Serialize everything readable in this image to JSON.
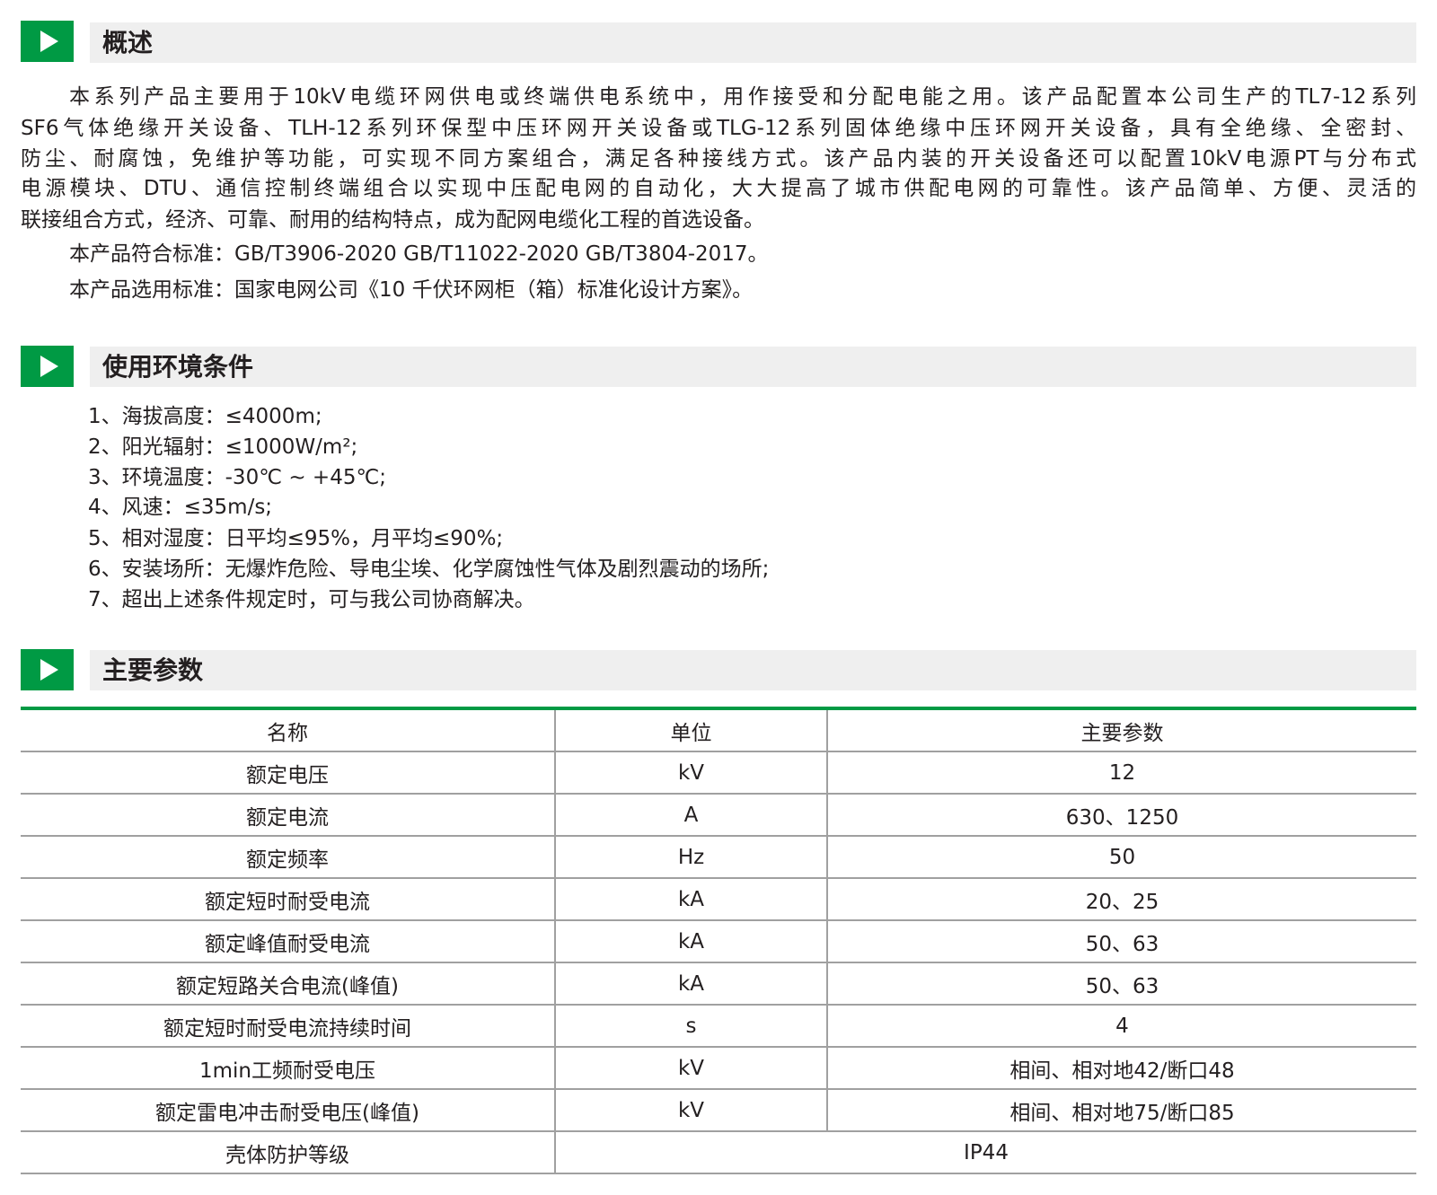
{
  "colors": {
    "accent": "#009a44",
    "header_bg": "#efefef",
    "text": "#231f20"
  },
  "sections": [
    {
      "icon": "play-triangle-icon",
      "title": "概述"
    },
    {
      "icon": "play-triangle-icon",
      "title": "使用环境条件"
    },
    {
      "icon": "play-triangle-icon",
      "title": "主要参数"
    }
  ],
  "overview": {
    "lines": [
      "本系列产品主要用于10kV电缆环网供电或终端供电系统中，用作接受和分配电能之用。该产品配置本公司生产的TL7-12系列",
      "SF6气体绝缘开关设备、TLH-12系列环保型中压环网开关设备或TLG-12系列固体绝缘中压环网开关设备，具有全绝缘、全密封、",
      "防尘、耐腐蚀，免维护等功能，可实现不同方案组合，满足各种接线方式。该产品内装的开关设备还可以配置10kV电源PT与分布式",
      "电源模块、DTU、通信控制终端组合以实现中压配电网的自动化，大大提高了城市供配电网的可靠性。该产品简单、方便、灵活的",
      "联接组合方式，经济、可靠、耐用的结构特点，成为配网电缆化工程的首选设备。"
    ],
    "standards": [
      "本产品符合标准：GB/T3906-2020  GB/T11022-2020  GB/T3804-2017。",
      "本产品选用标准：国家电网公司《10 千伏环网柜（箱）标准化设计方案》。"
    ]
  },
  "conditions": [
    "1、海拔高度：≤4000m;",
    "2、阳光辐射：≤1000W/m²;",
    "3、环境温度：-30℃ ~ +45℃;",
    "4、风速：≤35m/s;",
    "5、相对湿度：日平均≤95%，月平均≤90%;",
    "6、安装场所：无爆炸危险、导电尘埃、化学腐蚀性气体及剧烈震动的场所;",
    "7、超出上述条件规定时，可与我公司协商解决。"
  ],
  "params": {
    "headers": [
      "名称",
      "单位",
      "主要参数"
    ],
    "rows": [
      [
        "额定电压",
        "kV",
        "12"
      ],
      [
        "额定电流",
        "A",
        "630、1250"
      ],
      [
        "额定频率",
        "Hz",
        "50"
      ],
      [
        "额定短时耐受电流",
        "kA",
        "20、25"
      ],
      [
        "额定峰值耐受电流",
        "kA",
        "50、63"
      ],
      [
        "额定短路关合电流(峰值)",
        "kA",
        "50、63"
      ],
      [
        "额定短时耐受电流持续时间",
        "s",
        "4"
      ],
      [
        "1min工频耐受电压",
        "kV",
        "相间、相对地42/断口48"
      ],
      [
        "额定雷电冲击耐受电压(峰值)",
        "kV",
        "相间、相对地75/断口85"
      ]
    ],
    "last_row": [
      "壳体防护等级",
      "IP44"
    ]
  }
}
